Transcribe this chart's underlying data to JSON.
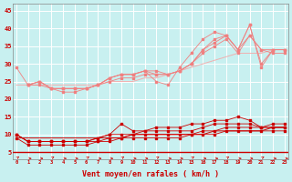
{
  "xlabel": "Vent moyen/en rafales ( km/h )",
  "xlim": [
    0,
    23
  ],
  "ylim": [
    5,
    45
  ],
  "yticks": [
    5,
    10,
    15,
    20,
    25,
    30,
    35,
    40,
    45
  ],
  "xticks": [
    0,
    1,
    2,
    3,
    4,
    5,
    6,
    7,
    8,
    9,
    10,
    11,
    12,
    13,
    14,
    15,
    16,
    17,
    18,
    19,
    20,
    21,
    22,
    23
  ],
  "background_color": "#c8f0f0",
  "grid_color": "#ffffff",
  "line_color_light": "#f08080",
  "line_color_dark": "#cc0000",
  "line_color_straight": "#f0b0b0",
  "series_light": [
    [
      29,
      24,
      25,
      23,
      23,
      23,
      23,
      24,
      26,
      27,
      27,
      28,
      25,
      24,
      29,
      33,
      37,
      39,
      38,
      34,
      41,
      29,
      34,
      34
    ],
    [
      null,
      24,
      25,
      23,
      23,
      23,
      23,
      24,
      26,
      27,
      27,
      28,
      27,
      27,
      28,
      30,
      34,
      37,
      38,
      34,
      41,
      30,
      34,
      34
    ],
    [
      null,
      24,
      25,
      23,
      23,
      23,
      23,
      24,
      26,
      27,
      27,
      28,
      28,
      27,
      28,
      30,
      34,
      36,
      38,
      34,
      38,
      34,
      34,
      34
    ],
    [
      null,
      24,
      24,
      23,
      22,
      22,
      23,
      24,
      25,
      26,
      26,
      27,
      27,
      27,
      28,
      30,
      33,
      35,
      37,
      33,
      38,
      34,
      33,
      33
    ],
    [
      null,
      null,
      null,
      null,
      null,
      null,
      null,
      null,
      null,
      null,
      null,
      null,
      null,
      null,
      null,
      null,
      null,
      null,
      null,
      null,
      null,
      null,
      null,
      null
    ]
  ],
  "series_dark": [
    [
      10,
      8,
      8,
      8,
      8,
      8,
      8,
      9,
      10,
      13,
      11,
      11,
      12,
      12,
      12,
      13,
      13,
      14,
      14,
      15,
      14,
      12,
      13,
      13
    ],
    [
      10,
      8,
      8,
      8,
      8,
      8,
      8,
      9,
      10,
      10,
      10,
      11,
      11,
      11,
      11,
      11,
      12,
      13,
      13,
      13,
      13,
      12,
      12,
      12
    ],
    [
      10,
      8,
      8,
      8,
      8,
      8,
      8,
      8,
      9,
      9,
      10,
      10,
      10,
      10,
      10,
      10,
      11,
      11,
      12,
      12,
      12,
      12,
      12,
      12
    ],
    [
      9,
      7,
      7,
      7,
      7,
      7,
      7,
      8,
      8,
      9,
      9,
      9,
      9,
      9,
      9,
      10,
      10,
      10,
      11,
      11,
      11,
      11,
      11,
      11
    ]
  ],
  "series_straight_light": [
    [
      24,
      24,
      24,
      24,
      24,
      24,
      24,
      24,
      25,
      25,
      25,
      26,
      26,
      27,
      28,
      29,
      30,
      31,
      32,
      33,
      33,
      33,
      34,
      34
    ]
  ],
  "series_straight_dark": [
    [
      9,
      9,
      9,
      9,
      9,
      9,
      9,
      9,
      9,
      9,
      10,
      10,
      10,
      10,
      10,
      10,
      10,
      11,
      11,
      11,
      11,
      11,
      12,
      12
    ]
  ]
}
